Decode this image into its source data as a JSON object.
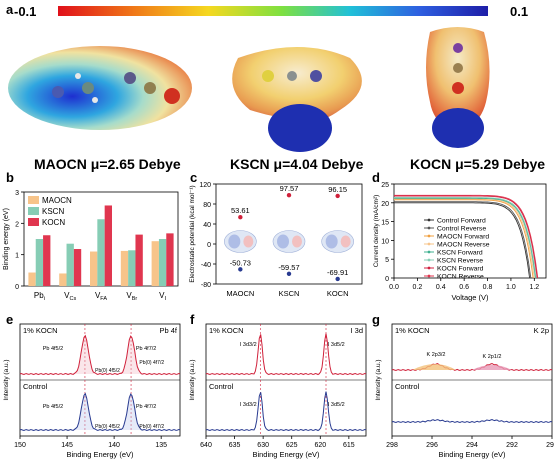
{
  "panels": {
    "a": "a",
    "b": "b",
    "c": "c",
    "d": "d",
    "e": "e",
    "f": "f",
    "g": "g"
  },
  "colorbar": {
    "min": "-0.1",
    "max": "0.1"
  },
  "molecules": [
    {
      "title": "MAOCN μ=2.65 Debye"
    },
    {
      "title": "KSCN μ=4.04 Debye"
    },
    {
      "title": "KOCN μ=5.29 Debye"
    }
  ],
  "chart_data": [
    {
      "panel": "b",
      "type": "bar",
      "ylabel": "Binding energy (eV)",
      "categories": [
        "Pbᵢ",
        "V_Cs",
        "V_FA",
        "V_Br",
        "Vᵢ"
      ],
      "category_labels": [
        "Pb",
        "V",
        "V",
        "V",
        "V"
      ],
      "category_subs": [
        "i",
        "Cs",
        "FA",
        "Br",
        "I"
      ],
      "ylim": [
        0,
        3
      ],
      "yticks": [
        "0",
        "1",
        "2",
        "3"
      ],
      "legend": [
        "MAOCN",
        "KSCN",
        "KOCN"
      ],
      "colors": {
        "MAOCN": "#f7c48a",
        "KSCN": "#86cdb5",
        "KOCN": "#e0364f"
      },
      "series": [
        {
          "name": "MAOCN",
          "values": [
            0.43,
            0.4,
            1.1,
            1.12,
            1.43
          ]
        },
        {
          "name": "KSCN",
          "values": [
            1.5,
            1.35,
            2.13,
            1.14,
            1.5
          ]
        },
        {
          "name": "KOCN",
          "values": [
            1.62,
            1.18,
            2.57,
            1.64,
            1.68
          ]
        }
      ]
    },
    {
      "panel": "c",
      "type": "scatter",
      "ylabel": "Electrostatic potential (kcal mol⁻¹)",
      "categories": [
        "MAOCN",
        "KSCN",
        "KOCN"
      ],
      "ylim": [
        -80,
        120
      ],
      "yticks": [
        "-80",
        "-40",
        "0",
        "40",
        "80",
        "120"
      ],
      "max_values": [
        53.61,
        97.57,
        96.15
      ],
      "min_values": [
        -50.73,
        -59.57,
        -69.91
      ],
      "max_labels": [
        "53.61",
        "97.57",
        "96.15"
      ],
      "min_labels": [
        "-50.73",
        "-59.57",
        "-69.91"
      ]
    },
    {
      "panel": "d",
      "type": "line",
      "xlabel": "Voltage (V)",
      "ylabel": "Current density (mA/cm²)",
      "xlim": [
        0,
        1.3
      ],
      "ylim": [
        0,
        25
      ],
      "xticks": [
        "0.0",
        "0.2",
        "0.4",
        "0.6",
        "0.8",
        "1.0",
        "1.2"
      ],
      "yticks": [
        "0",
        "5",
        "10",
        "15",
        "20",
        "25"
      ],
      "series": [
        {
          "name": "Control Forward",
          "color": "#333333",
          "jsc": 20.0,
          "voc": 1.16
        },
        {
          "name": "Control Reverse",
          "color": "#555555",
          "jsc": 20.3,
          "voc": 1.17
        },
        {
          "name": "MAOCN Forward",
          "color": "#f0a040",
          "jsc": 20.8,
          "voc": 1.19
        },
        {
          "name": "MAOCN Reverse",
          "color": "#f7c48a",
          "jsc": 21.0,
          "voc": 1.2
        },
        {
          "name": "KSCN Forward",
          "color": "#40b090",
          "jsc": 21.2,
          "voc": 1.21
        },
        {
          "name": "KSCN Reverse",
          "color": "#86cdb5",
          "jsc": 21.4,
          "voc": 1.215
        },
        {
          "name": "KOCN Forward",
          "color": "#d02040",
          "jsc": 21.8,
          "voc": 1.225
        },
        {
          "name": "KOCN Reverse",
          "color": "#e0364f",
          "jsc": 22.0,
          "voc": 1.23
        }
      ]
    },
    {
      "panel": "e",
      "type": "line",
      "xlabel": "Binding Energy (eV)",
      "ylabel": "Intensity (a.u.)",
      "xlim": [
        150,
        133
      ],
      "xticks": [
        "150",
        "145",
        "140",
        "135"
      ],
      "top_label": "1% KOCN",
      "bottom_label": "Control",
      "corner": "Pb 4f",
      "peaks": [
        143.1,
        138.2
      ],
      "annotations": {
        "pb72": "Pb 4f7/2",
        "pb52": "Pb 4f5/2",
        "pb0_52": "Pb(0) 4f5/2",
        "pb0_72": "Pb(0) 4f7/2"
      }
    },
    {
      "panel": "f",
      "type": "line",
      "xlabel": "Binding Energy (eV)",
      "ylabel": "Intensity (a.u.)",
      "xlim": [
        640,
        612
      ],
      "xticks": [
        "640",
        "635",
        "630",
        "625",
        "620",
        "615"
      ],
      "top_label": "1% KOCN",
      "bottom_label": "Control",
      "corner": "I 3d",
      "peaks": [
        630.5,
        619.0
      ],
      "annotations": {
        "i32": "I 3d3/2",
        "i52": "I 3d5/2"
      }
    },
    {
      "panel": "g",
      "type": "line",
      "xlabel": "Binding Energy (eV)",
      "ylabel": "Intensity (a.u.)",
      "xlim": [
        298,
        290
      ],
      "xticks": [
        "298",
        "296",
        "294",
        "292",
        "290"
      ],
      "top_label": "1% KOCN",
      "bottom_label": "Control",
      "corner": "K 2p",
      "annotations": {
        "k32": "K 2p3/2",
        "k12": "K 2p1/2"
      }
    }
  ]
}
